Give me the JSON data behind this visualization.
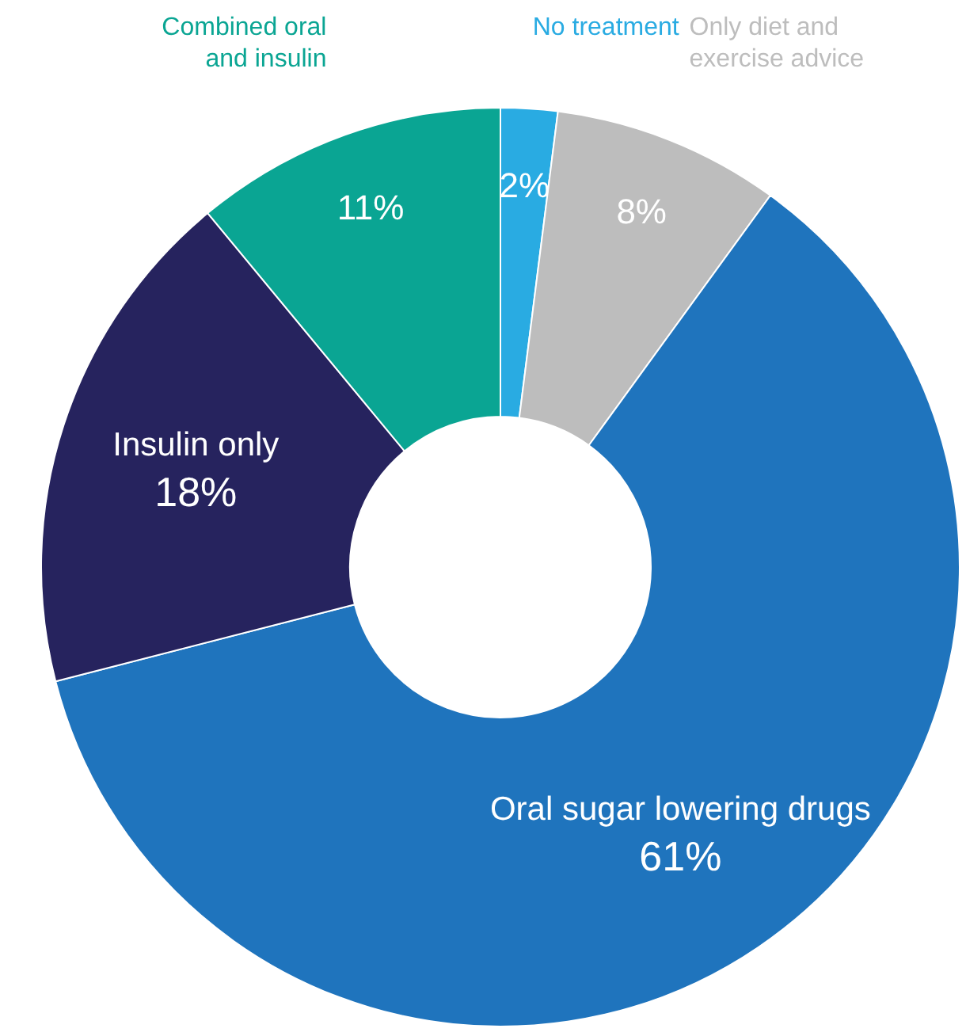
{
  "chart_data": {
    "type": "donut",
    "categories": [
      "No treatment",
      "Only diet and exercise advice",
      "Oral sugar lowering drugs",
      "Insulin only",
      "Combined oral and insulin"
    ],
    "values": [
      2,
      8,
      61,
      18,
      11
    ],
    "colors": [
      "#29abe2",
      "#bdbdbd",
      "#1f74bd",
      "#26235e",
      "#0aa593"
    ],
    "value_labels": [
      "2%",
      "8%",
      "61%",
      "18%",
      "11%"
    ],
    "legend": false
  }
}
